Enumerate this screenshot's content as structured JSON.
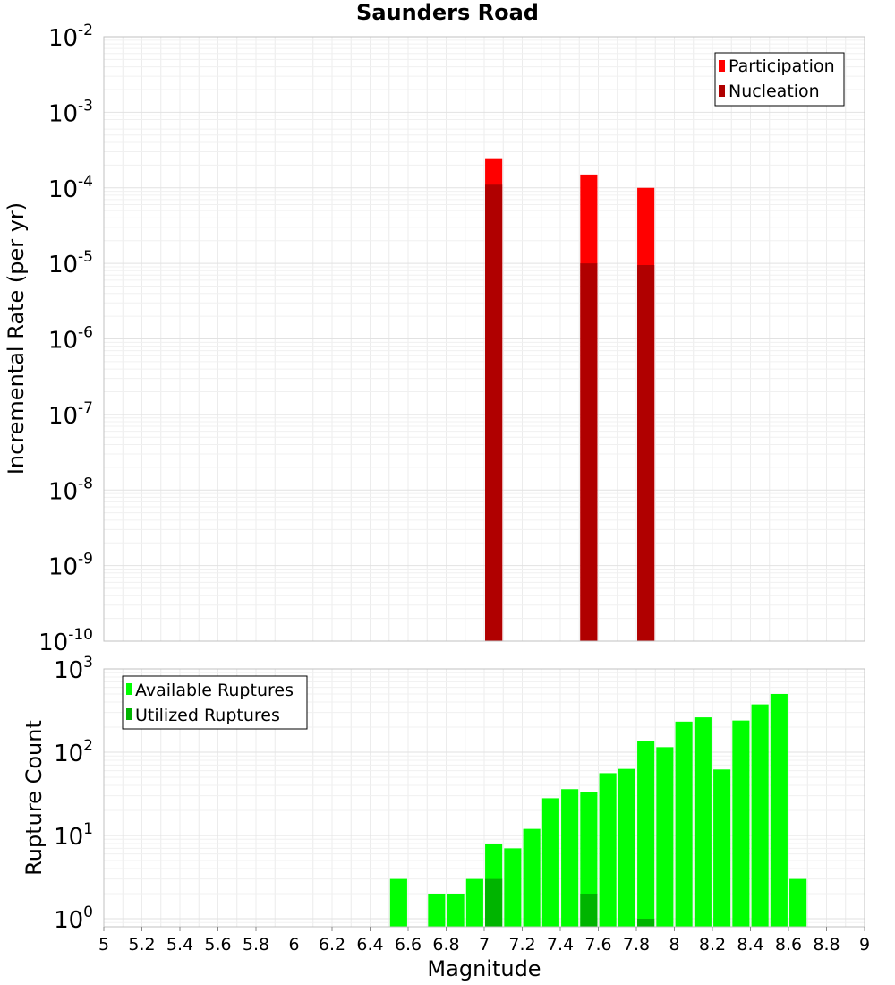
{
  "title": "Saunders Road",
  "colors": {
    "participation": "#ff0000",
    "nucleation": "#b00000",
    "available": "#00ff00",
    "utilized": "#00b400"
  },
  "chart_data": [
    {
      "type": "bar",
      "title": "Saunders Road",
      "ylabel": "Incremental Rate (per yr)",
      "yscale": "log",
      "ylim": [
        1e-10,
        0.01
      ],
      "xlim": [
        5,
        9
      ],
      "grid": true,
      "legend_position": "top-right",
      "y_ticks": [
        {
          "base": "10",
          "exp": "-10"
        },
        {
          "base": "10",
          "exp": "-9"
        },
        {
          "base": "10",
          "exp": "-8"
        },
        {
          "base": "10",
          "exp": "-7"
        },
        {
          "base": "10",
          "exp": "-6"
        },
        {
          "base": "10",
          "exp": "-5"
        },
        {
          "base": "10",
          "exp": "-4"
        },
        {
          "base": "10",
          "exp": "-3"
        },
        {
          "base": "10",
          "exp": "-2"
        }
      ],
      "series": [
        {
          "name": "Participation",
          "x": [
            7.05,
            7.55,
            7.85
          ],
          "values": [
            0.00024,
            0.00015,
            0.0001
          ]
        },
        {
          "name": "Nucleation",
          "x": [
            7.05,
            7.55,
            7.85
          ],
          "values": [
            0.00011,
            1e-05,
            9.5e-06
          ]
        }
      ]
    },
    {
      "type": "bar",
      "ylabel": "Rupture Count",
      "xlabel": "Magnitude",
      "yscale": "log",
      "ylim": [
        0.8,
        1000
      ],
      "xlim": [
        5,
        9
      ],
      "grid": true,
      "legend_position": "top-left",
      "x_ticks": [
        "5",
        "5.2",
        "5.4",
        "5.6",
        "5.8",
        "6",
        "6.2",
        "6.4",
        "6.6",
        "6.8",
        "7",
        "7.2",
        "7.4",
        "7.6",
        "7.8",
        "8",
        "8.2",
        "8.4",
        "8.6",
        "8.8",
        "9"
      ],
      "y_ticks": [
        {
          "base": "10",
          "exp": "0"
        },
        {
          "base": "10",
          "exp": "1"
        },
        {
          "base": "10",
          "exp": "2"
        },
        {
          "base": "10",
          "exp": "3"
        }
      ],
      "series": [
        {
          "name": "Available Ruptures",
          "x": [
            6.55,
            6.75,
            6.85,
            6.95,
            7.05,
            7.15,
            7.25,
            7.35,
            7.45,
            7.55,
            7.65,
            7.75,
            7.85,
            7.95,
            8.05,
            8.15,
            8.25,
            8.35,
            8.45,
            8.55,
            8.65
          ],
          "values": [
            3,
            2,
            2,
            3,
            8,
            7,
            12,
            28,
            36,
            33,
            56,
            63,
            137,
            115,
            233,
            262,
            62,
            240,
            375,
            500,
            3
          ]
        },
        {
          "name": "Utilized Ruptures",
          "x": [
            7.05,
            7.55,
            7.85
          ],
          "values": [
            3,
            2,
            1
          ]
        }
      ]
    }
  ]
}
